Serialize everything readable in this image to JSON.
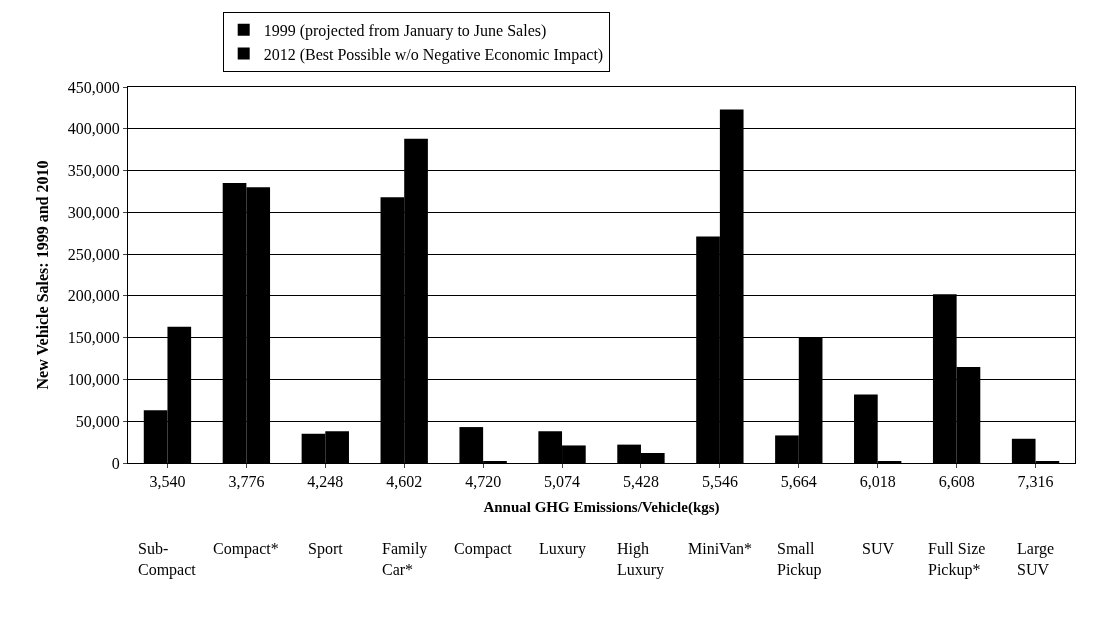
{
  "chart_data": {
    "type": "bar",
    "xlabel": "Annual GHG Emissions/Vehicle(kgs)",
    "ylabel": "New Vehicle Sales: 1999 and 2010",
    "categories": [
      "3,540",
      "3,776",
      "4,248",
      "4,602",
      "4,720",
      "5,074",
      "5,428",
      "5,546",
      "5,664",
      "6,018",
      "6,608",
      "7,316"
    ],
    "series": [
      {
        "name": "1999 (projected from January to June Sales)",
        "color": "#000000",
        "values": [
          63000,
          335000,
          35000,
          318000,
          43000,
          38000,
          22000,
          271000,
          33000,
          82000,
          202000,
          29000
        ]
      },
      {
        "name": "2012 (Best Possible w/o Negative Economic Impact)",
        "color": "#000000",
        "values": [
          163000,
          330000,
          38000,
          388000,
          2000,
          21000,
          12000,
          423000,
          150000,
          2000,
          115000,
          2000
        ]
      }
    ],
    "ylim": [
      0,
      450000
    ],
    "yticks": [
      {
        "value": 0,
        "label": "0"
      },
      {
        "value": 50000,
        "label": "50,000"
      },
      {
        "value": 100000,
        "label": "100,000"
      },
      {
        "value": 150000,
        "label": "150,000"
      },
      {
        "value": 200000,
        "label": "200,000"
      },
      {
        "value": 250000,
        "label": "250,000"
      },
      {
        "value": 300000,
        "label": "300,000"
      },
      {
        "value": 350000,
        "label": "350,000"
      },
      {
        "value": 400000,
        "label": "400,000"
      },
      {
        "value": 450000,
        "label": "450,000"
      }
    ],
    "grid": "y",
    "legend": "top",
    "annotations": [
      "Sub-\nCompact",
      "Compact*",
      "Sport",
      "Family\nCar*",
      "Compact",
      "Luxury",
      "High\nLuxury",
      "MiniVan*",
      "Small\nPickup",
      "SUV",
      "Full Size\nPickup*",
      "Large\nSUV"
    ]
  }
}
